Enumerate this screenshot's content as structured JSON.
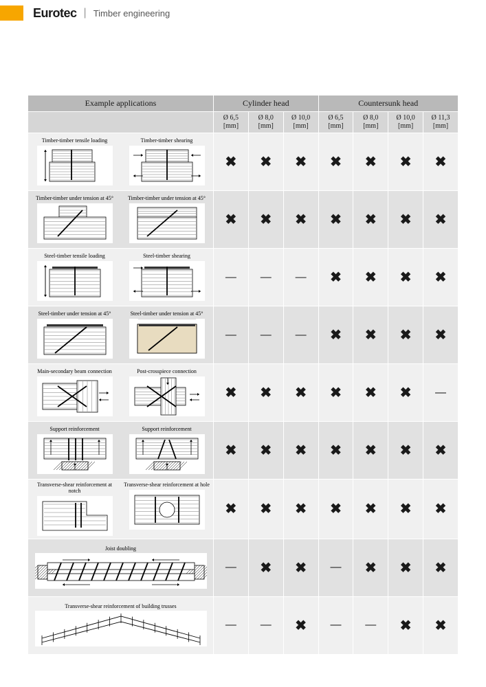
{
  "header": {
    "brand": "Eurotec",
    "subtitle": "Timber engineering"
  },
  "table": {
    "groups": [
      {
        "label": "Example applications",
        "span": 1
      },
      {
        "label": "Cylinder head",
        "span": 3
      },
      {
        "label": "Countersunk head",
        "span": 4
      }
    ],
    "columns": [
      "Ø 6,5\n[mm]",
      "Ø 8,0\n[mm]",
      "Ø 10,0\n[mm]",
      "Ø 6,5\n[mm]",
      "Ø 8,0\n[mm]",
      "Ø 10,0\n[mm]",
      "Ø 11,3\n[mm]"
    ],
    "rows": [
      {
        "diagrams": [
          {
            "label": "Timber-timber tensile loading",
            "type": "tt-tensile"
          },
          {
            "label": "Timber-timber shearing",
            "type": "tt-shear"
          }
        ],
        "marks": [
          "x",
          "x",
          "x",
          "x",
          "x",
          "x",
          "x"
        ]
      },
      {
        "diagrams": [
          {
            "label": "Timber-timber under tension at 45°",
            "type": "tt-45a"
          },
          {
            "label": "Timber-timber under tension at 45°",
            "type": "tt-45b"
          }
        ],
        "marks": [
          "x",
          "x",
          "x",
          "x",
          "x",
          "x",
          "x"
        ]
      },
      {
        "diagrams": [
          {
            "label": "Steel-timber tensile loading",
            "type": "st-tensile"
          },
          {
            "label": "Steel-timber shearing",
            "type": "st-shear"
          }
        ],
        "marks": [
          "-",
          "-",
          "-",
          "x",
          "x",
          "x",
          "x"
        ]
      },
      {
        "diagrams": [
          {
            "label": "Steel-timber under tension at 45°",
            "type": "st-45a"
          },
          {
            "label": "Steel-timber under tension at 45°",
            "type": "st-45b"
          }
        ],
        "marks": [
          "-",
          "-",
          "-",
          "x",
          "x",
          "x",
          "x"
        ]
      },
      {
        "diagrams": [
          {
            "label": "Main-secondary beam connection",
            "type": "main-sec"
          },
          {
            "label": "Post-crosspiece connection",
            "type": "post-cross"
          }
        ],
        "marks": [
          "x",
          "x",
          "x",
          "x",
          "x",
          "x",
          "-"
        ]
      },
      {
        "diagrams": [
          {
            "label": "Support reinforcement",
            "type": "support-a"
          },
          {
            "label": "Support reinforcement",
            "type": "support-b"
          }
        ],
        "marks": [
          "x",
          "x",
          "x",
          "x",
          "x",
          "x",
          "x"
        ]
      },
      {
        "diagrams": [
          {
            "label": "Transverse-shear reinforcement at notch",
            "type": "notch"
          },
          {
            "label": "Transverse-shear reinforcement at hole",
            "type": "hole"
          }
        ],
        "marks": [
          "x",
          "x",
          "x",
          "x",
          "x",
          "x",
          "x"
        ]
      },
      {
        "diagrams": [
          {
            "label": "Joist doubling",
            "type": "joist",
            "wide": true
          }
        ],
        "marks": [
          "-",
          "x",
          "x",
          "-",
          "x",
          "x",
          "x"
        ]
      },
      {
        "diagrams": [
          {
            "label": "Transverse-shear reinforcement of building trusses",
            "type": "truss",
            "wide": true
          }
        ],
        "marks": [
          "-",
          "-",
          "x",
          "-",
          "-",
          "x",
          "x"
        ]
      }
    ],
    "style": {
      "header_group_bg": "#b9b9b9",
      "header_col_bg": "#d6d6d6",
      "row_even_bg": "#f0f0f0",
      "row_odd_bg": "#e1e1e1",
      "mark_x_glyph": "✖",
      "mark_dash_glyph": "—",
      "label_fontsize": 8,
      "mark_fontsize": 20
    }
  }
}
